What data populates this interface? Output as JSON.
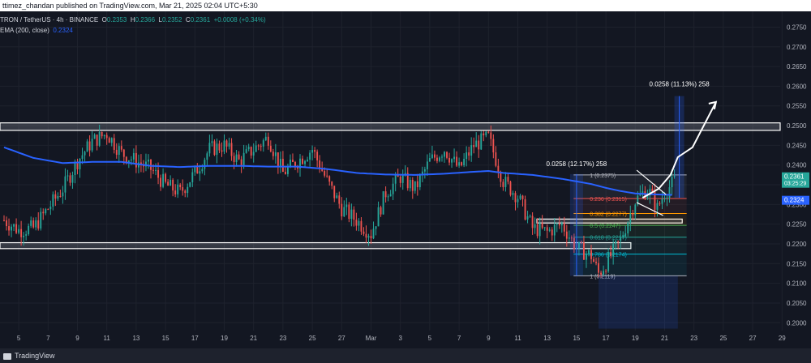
{
  "header": {
    "publish_line": "ttimez_chandan published on TradingView.com, Mar 21, 2025 02:04 UTC+5:30"
  },
  "legend": {
    "symbol": "TRON / TetherUS · 4h · BINANCE",
    "o_label": "O",
    "o": "0.2353",
    "h_label": "H",
    "h": "0.2366",
    "l_label": "L",
    "l": "0.2352",
    "c_label": "C",
    "c": "0.2361",
    "change": "+0.0008 (+0.34%)",
    "ema_label": "EMA (200, close)",
    "ema_value": "0.2324"
  },
  "footer": {
    "brand": "TradingView"
  },
  "colors": {
    "bg": "#131722",
    "up": "#26a69a",
    "down": "#ef5350",
    "ema": "#2962ff",
    "grid": "#1e222d",
    "text": "#b2b5be"
  },
  "chart_data": {
    "type": "candlestick",
    "yticks": [
      0.2,
      0.205,
      0.21,
      0.215,
      0.22,
      0.225,
      0.23,
      0.235,
      0.24,
      0.245,
      0.25,
      0.255,
      0.26,
      0.265,
      0.27,
      0.275
    ],
    "ylim": [
      0.198,
      0.279
    ],
    "xticks": [
      {
        "day": 5,
        "label": "5"
      },
      {
        "day": 7,
        "label": "7"
      },
      {
        "day": 9,
        "label": "9"
      },
      {
        "day": 11,
        "label": "11"
      },
      {
        "day": 13,
        "label": "13"
      },
      {
        "day": 15,
        "label": "15"
      },
      {
        "day": 17,
        "label": "17"
      },
      {
        "day": 19,
        "label": "19"
      },
      {
        "day": 21,
        "label": "21"
      },
      {
        "day": 23,
        "label": "23"
      },
      {
        "day": 25,
        "label": "25"
      },
      {
        "day": 27,
        "label": "27"
      },
      {
        "day": 29,
        "label": "Mar"
      },
      {
        "day": 31,
        "label": "3"
      },
      {
        "day": 33,
        "label": "5"
      },
      {
        "day": 35,
        "label": "7"
      },
      {
        "day": 37,
        "label": "9"
      },
      {
        "day": 39,
        "label": "11"
      },
      {
        "day": 41,
        "label": "13"
      },
      {
        "day": 43,
        "label": "15"
      },
      {
        "day": 45,
        "label": "17"
      },
      {
        "day": 47,
        "label": "19"
      },
      {
        "day": 49,
        "label": "21"
      },
      {
        "day": 51,
        "label": "23"
      },
      {
        "day": 53,
        "label": "25"
      },
      {
        "day": 55,
        "label": "27"
      },
      {
        "day": 57,
        "label": "29"
      }
    ],
    "anchors": [
      [
        4,
        0.226
      ],
      [
        5,
        0.2235
      ],
      [
        6,
        0.224
      ],
      [
        7,
        0.229
      ],
      [
        8,
        0.234
      ],
      [
        9,
        0.241
      ],
      [
        10,
        0.246
      ],
      [
        11,
        0.248
      ],
      [
        12,
        0.243
      ],
      [
        13,
        0.241
      ],
      [
        14,
        0.239
      ],
      [
        15,
        0.235
      ],
      [
        16,
        0.233
      ],
      [
        17,
        0.238
      ],
      [
        18,
        0.244
      ],
      [
        19,
        0.245
      ],
      [
        20,
        0.241
      ],
      [
        21,
        0.244
      ],
      [
        22,
        0.247
      ],
      [
        23,
        0.238
      ],
      [
        24,
        0.241
      ],
      [
        25,
        0.244
      ],
      [
        26,
        0.236
      ],
      [
        27,
        0.229
      ],
      [
        28,
        0.226
      ],
      [
        29,
        0.2225
      ],
      [
        30,
        0.233
      ],
      [
        31,
        0.237
      ],
      [
        32,
        0.234
      ],
      [
        33,
        0.241
      ],
      [
        34,
        0.244
      ],
      [
        35,
        0.239
      ],
      [
        36,
        0.245
      ],
      [
        37,
        0.247
      ],
      [
        38,
        0.236
      ],
      [
        39,
        0.232
      ],
      [
        40,
        0.224
      ],
      [
        41,
        0.223
      ],
      [
        42,
        0.225
      ],
      [
        43,
        0.219
      ],
      [
        44,
        0.217
      ],
      [
        44.5,
        0.2125
      ],
      [
        45,
        0.215
      ],
      [
        46,
        0.221
      ],
      [
        47,
        0.231
      ],
      [
        47.7,
        0.2335
      ],
      [
        48,
        0.233
      ],
      [
        48.5,
        0.229
      ],
      [
        49,
        0.233
      ],
      [
        49.7,
        0.2361
      ]
    ],
    "ema_anchors": [
      [
        4,
        0.2445
      ],
      [
        6,
        0.2418
      ],
      [
        8,
        0.2405
      ],
      [
        10,
        0.2408
      ],
      [
        12,
        0.2408
      ],
      [
        14,
        0.2398
      ],
      [
        16,
        0.2395
      ],
      [
        18,
        0.2398
      ],
      [
        20,
        0.2398
      ],
      [
        22,
        0.2396
      ],
      [
        24,
        0.2396
      ],
      [
        26,
        0.239
      ],
      [
        28,
        0.238
      ],
      [
        30,
        0.2376
      ],
      [
        32,
        0.2375
      ],
      [
        34,
        0.2378
      ],
      [
        36,
        0.2383
      ],
      [
        37,
        0.2385
      ],
      [
        38,
        0.238
      ],
      [
        40,
        0.2375
      ],
      [
        42,
        0.2365
      ],
      [
        44,
        0.2352
      ],
      [
        45,
        0.2342
      ],
      [
        46,
        0.2334
      ],
      [
        47,
        0.2328
      ],
      [
        48,
        0.2326
      ],
      [
        49.7,
        0.2324
      ]
    ],
    "zones": [
      {
        "y1": 0.2488,
        "y2": 0.2507
      },
      {
        "y1": 0.2188,
        "y2": 0.2203
      },
      {
        "y1": 0.2253,
        "y2": 0.2263
      }
    ],
    "fib_levels": [
      {
        "label": "1 (0.2375)",
        "value": 0.2375,
        "color": "#b2b5be"
      },
      {
        "label": "0.236 (0.2315)",
        "value": 0.2315,
        "color": "#ef5350"
      },
      {
        "label": "0.382 (0.2277)",
        "value": 0.2277,
        "color": "#ff9800"
      },
      {
        "label": "0.5 (0.2247)",
        "value": 0.2247,
        "color": "#4caf50"
      },
      {
        "label": "0.618 (0.2217)",
        "value": 0.2217,
        "color": "#26a69a"
      },
      {
        "label": "0.786 (0.2174)",
        "value": 0.2174,
        "color": "#00bcd4"
      },
      {
        "label": "1 (0.2119)",
        "value": 0.2119,
        "color": "#b2b5be"
      }
    ],
    "measure_1": {
      "label": "0.0258 (12.17%) 258",
      "from": 0.2119,
      "to": 0.2377,
      "day": 43
    },
    "measure_2": {
      "label": "0.0258 (11.13%) 258",
      "from": 0.2317,
      "to": 0.2575,
      "day": 50
    },
    "price_tags": [
      {
        "label": "0.2361",
        "sub": "03:25:29",
        "value": 0.2361,
        "color": "#26a69a"
      },
      {
        "label": "0.2324",
        "value": 0.2324,
        "color": "#2962ff"
      }
    ]
  }
}
